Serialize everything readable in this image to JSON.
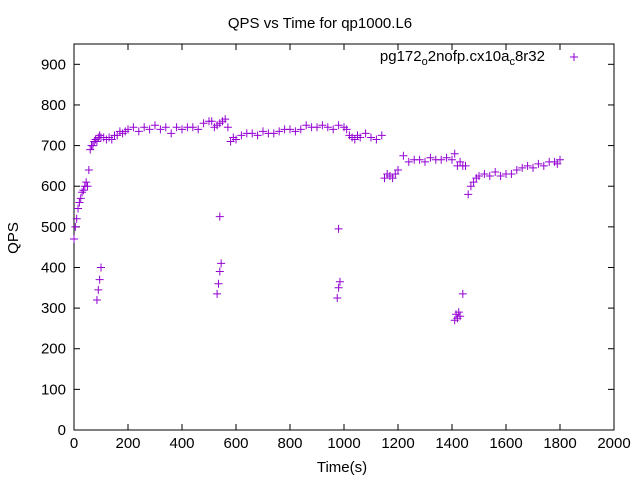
{
  "chart_data": {
    "type": "scatter",
    "title": "QPS vs Time for qp1000.L6",
    "xlabel": "Time(s)",
    "ylabel": "QPS",
    "xlim": [
      0,
      2000
    ],
    "ylim": [
      0,
      950
    ],
    "xticks": [
      "0",
      "200",
      "400",
      "600",
      "800",
      "1000",
      "1200",
      "1400",
      "1600",
      "1800",
      "2000"
    ],
    "yticks": [
      "0",
      "100",
      "200",
      "300",
      "400",
      "500",
      "600",
      "700",
      "800",
      "900"
    ],
    "grid": false,
    "legend_position": "top-right",
    "marker": "+",
    "series": [
      {
        "name": "pg172_o2nofp.cx10a_c8r32",
        "name_parts": {
          "a": "pg172",
          "b": "o",
          "c": "2nofp.cx10a",
          "d": "c",
          "e": "8r32"
        },
        "color": "#9400d3",
        "x": [
          0,
          5,
          10,
          15,
          20,
          25,
          30,
          35,
          40,
          45,
          50,
          55,
          60,
          65,
          70,
          75,
          80,
          85,
          90,
          95,
          100,
          110,
          120,
          130,
          140,
          150,
          160,
          170,
          180,
          190,
          200,
          220,
          240,
          260,
          280,
          300,
          320,
          340,
          360,
          380,
          400,
          420,
          440,
          460,
          480,
          500,
          510,
          520,
          530,
          540,
          550,
          560,
          570,
          580,
          590,
          600,
          620,
          640,
          660,
          680,
          700,
          720,
          740,
          760,
          780,
          800,
          820,
          840,
          860,
          880,
          900,
          920,
          940,
          960,
          980,
          1000,
          1010,
          1020,
          1030,
          1040,
          1050,
          1060,
          1080,
          1100,
          1120,
          1140,
          1150,
          1160,
          1170,
          1180,
          1190,
          1200,
          1220,
          1240,
          1260,
          1280,
          1300,
          1320,
          1340,
          1360,
          1380,
          1400,
          1410,
          1420,
          1430,
          1440,
          1450,
          1460,
          1470,
          1480,
          1490,
          1500,
          1520,
          1540,
          1560,
          1580,
          1600,
          1620,
          1640,
          1660,
          1680,
          1700,
          1720,
          1740,
          1760,
          1780,
          1790,
          1800,
          85,
          90,
          95,
          100,
          530,
          535,
          540,
          545,
          975,
          980,
          985,
          1410,
          1415,
          1420,
          1425,
          1430,
          540,
          980,
          1440
        ],
        "y": [
          470,
          500,
          520,
          545,
          560,
          570,
          585,
          590,
          600,
          610,
          600,
          640,
          690,
          700,
          700,
          710,
          715,
          710,
          720,
          725,
          720,
          720,
          715,
          720,
          715,
          725,
          725,
          735,
          730,
          735,
          740,
          745,
          735,
          745,
          740,
          750,
          740,
          745,
          730,
          745,
          740,
          745,
          745,
          740,
          755,
          760,
          760,
          745,
          750,
          755,
          760,
          765,
          745,
          710,
          720,
          715,
          725,
          730,
          730,
          725,
          735,
          730,
          730,
          735,
          740,
          740,
          735,
          740,
          750,
          745,
          745,
          750,
          745,
          740,
          750,
          745,
          740,
          725,
          720,
          715,
          725,
          720,
          730,
          720,
          715,
          725,
          620,
          630,
          625,
          620,
          630,
          640,
          675,
          660,
          665,
          665,
          660,
          670,
          665,
          665,
          670,
          665,
          680,
          650,
          660,
          650,
          650,
          580,
          600,
          610,
          620,
          625,
          630,
          625,
          635,
          625,
          630,
          630,
          640,
          645,
          650,
          645,
          655,
          650,
          660,
          660,
          655,
          665,
          320,
          345,
          370,
          400,
          335,
          360,
          390,
          410,
          325,
          350,
          365,
          270,
          285,
          275,
          290,
          280,
          525,
          495,
          335
        ]
      }
    ]
  }
}
